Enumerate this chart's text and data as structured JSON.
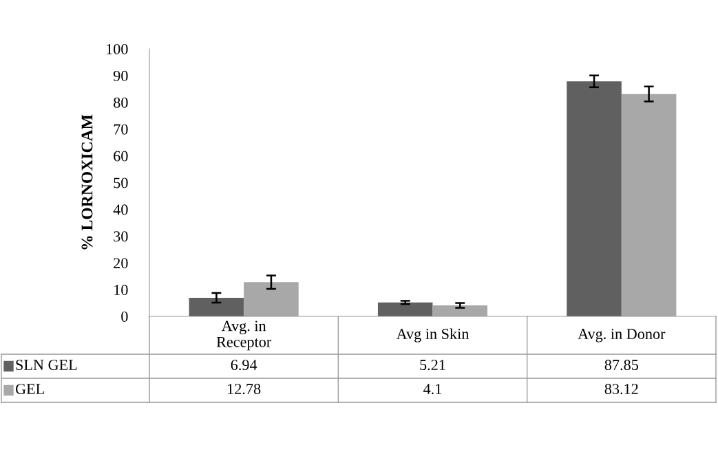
{
  "chart_data": {
    "type": "bar",
    "ylabel": "% LORNOXICAM",
    "categories": [
      "Avg. in Receptor",
      "Avg in Skin",
      "Avg. in Donor"
    ],
    "series": [
      {
        "name": "SLN GEL",
        "color": "#606060",
        "values": [
          6.94,
          5.21,
          87.85
        ],
        "errors": [
          1.8,
          0.6,
          2.2
        ]
      },
      {
        "name": "GEL",
        "color": "#a8a8a8",
        "values": [
          12.78,
          4.1,
          83.12
        ],
        "errors": [
          2.5,
          0.9,
          2.8
        ]
      }
    ],
    "ylim": [
      0,
      100
    ],
    "yticks": [
      0,
      10,
      20,
      30,
      40,
      50,
      60,
      70,
      80,
      90,
      100
    ],
    "data_labels": true,
    "legend": "bottom",
    "grid": false
  }
}
